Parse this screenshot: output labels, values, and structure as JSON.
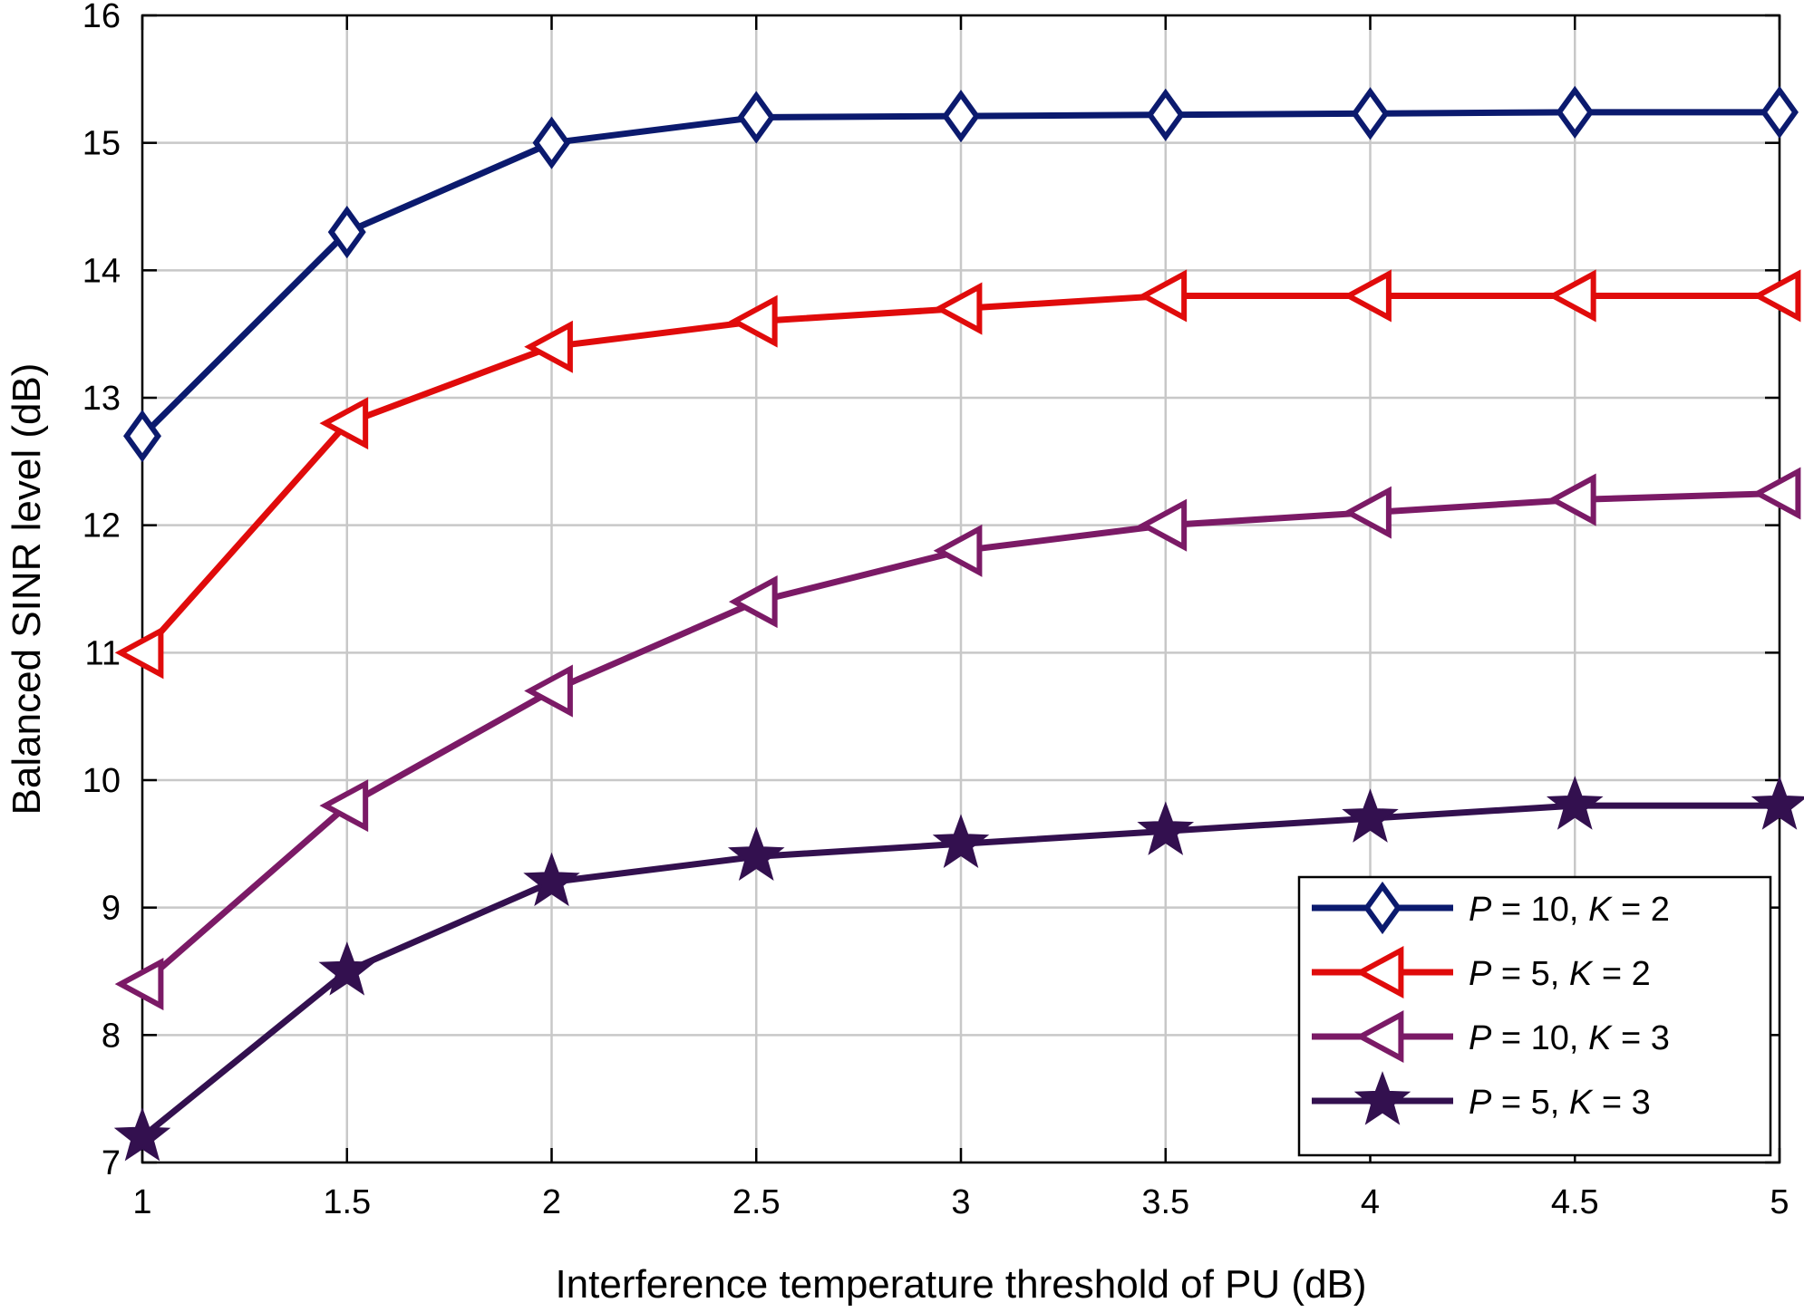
{
  "chart_data": {
    "type": "line",
    "title": "",
    "xlabel": "Interference temperature threshold of PU (dB)",
    "ylabel": "Balanced SINR level (dB)",
    "xlim": [
      1,
      5
    ],
    "ylim": [
      7,
      16
    ],
    "xticks": [
      1,
      1.5,
      2,
      2.5,
      3,
      3.5,
      4,
      4.5,
      5
    ],
    "xtick_labels": [
      "1",
      "1.5",
      "2",
      "2.5",
      "3",
      "3.5",
      "4",
      "4.5",
      "5"
    ],
    "yticks": [
      7,
      8,
      9,
      10,
      11,
      12,
      13,
      14,
      15,
      16
    ],
    "ytick_labels": [
      "7",
      "8",
      "9",
      "10",
      "11",
      "12",
      "13",
      "14",
      "15",
      "16"
    ],
    "grid": true,
    "legend_position": "bottom-right",
    "x": [
      1,
      1.5,
      2,
      2.5,
      3,
      3.5,
      4,
      4.5,
      5
    ],
    "series": [
      {
        "name": "P = 10, K = 2",
        "legend": {
          "p_var": "P",
          "p_rest": " = 10, ",
          "k_var": "K",
          "k_rest": " = 2"
        },
        "values": [
          12.7,
          14.3,
          15.0,
          15.2,
          15.21,
          15.22,
          15.23,
          15.24,
          15.24
        ],
        "color": "#0b1a6e",
        "marker": "diamond"
      },
      {
        "name": "P = 5, K = 2",
        "legend": {
          "p_var": "P",
          "p_rest": " = 5, ",
          "k_var": "K",
          "k_rest": " = 2"
        },
        "values": [
          11.0,
          12.8,
          13.4,
          13.6,
          13.7,
          13.8,
          13.8,
          13.8,
          13.8
        ],
        "color": "#e00b0b",
        "marker": "triangle-left"
      },
      {
        "name": "P = 10, K = 3",
        "legend": {
          "p_var": "P",
          "p_rest": " = 10, ",
          "k_var": "K",
          "k_rest": " = 3"
        },
        "values": [
          8.4,
          9.8,
          10.7,
          11.4,
          11.8,
          12.0,
          12.1,
          12.2,
          12.25
        ],
        "color": "#7b1a66",
        "marker": "triangle-left"
      },
      {
        "name": "P = 5, K = 3",
        "legend": {
          "p_var": "P",
          "p_rest": " = 5, ",
          "k_var": "K",
          "k_rest": " = 3"
        },
        "values": [
          7.2,
          8.5,
          9.2,
          9.4,
          9.5,
          9.6,
          9.7,
          9.8,
          9.8
        ],
        "color": "#33104f",
        "marker": "star"
      }
    ]
  }
}
